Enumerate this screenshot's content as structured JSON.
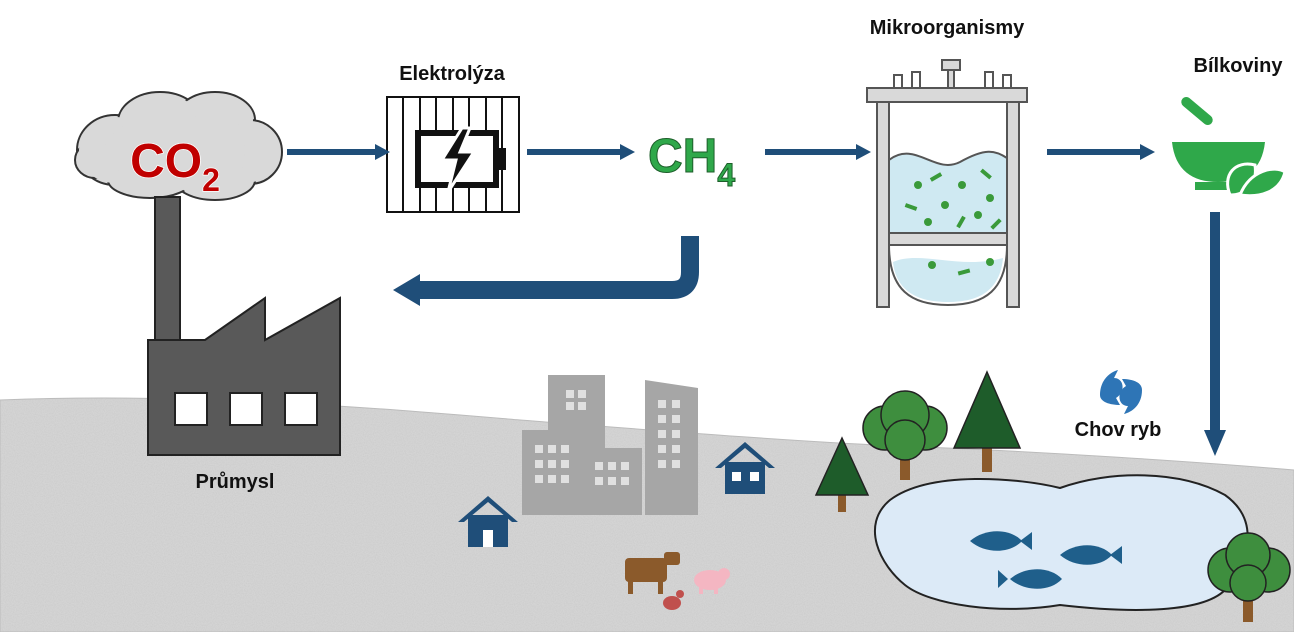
{
  "nodes": {
    "co2": {
      "text": "CO",
      "subscript": "2"
    },
    "electrolysis": {
      "label": "Elektrolýza"
    },
    "ch4": {
      "text": "CH",
      "subscript": "4"
    },
    "microorganisms": {
      "label": "Mikroorganismy"
    },
    "proteins": {
      "label": "Bílkoviny"
    },
    "fish_farming": {
      "label": "Chov ryb"
    },
    "industry": {
      "label": "Průmysl"
    }
  }
}
